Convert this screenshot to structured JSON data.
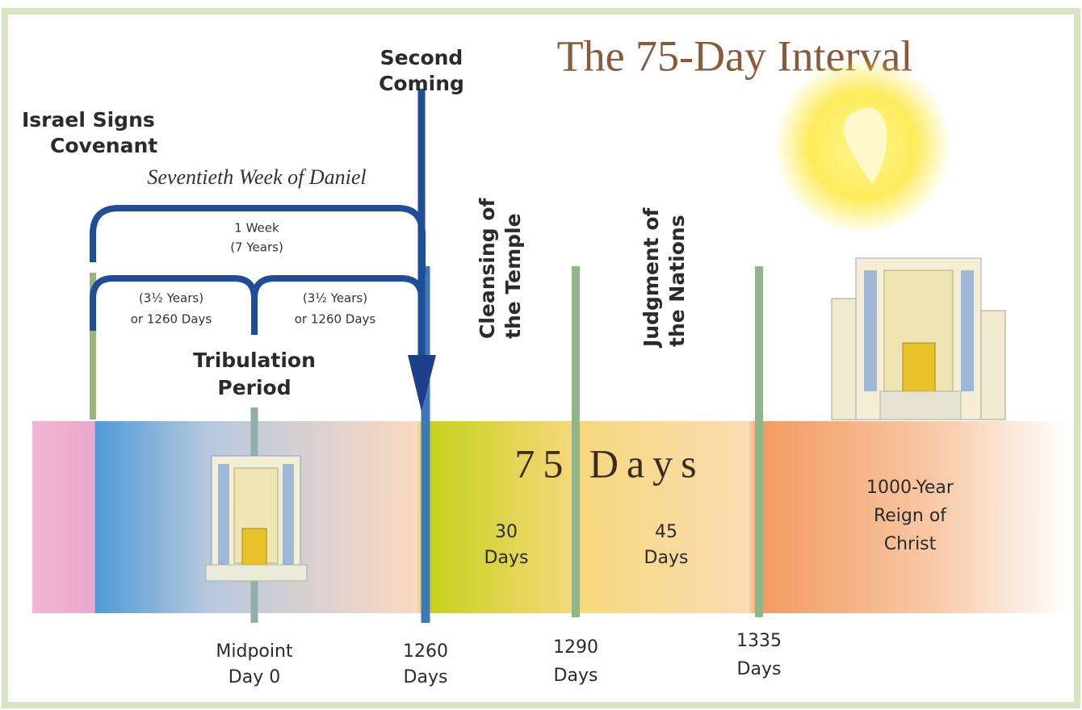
{
  "title": "The 75-Day Interval",
  "labels": {
    "second_coming": [
      "Second",
      "Coming"
    ],
    "covenant": [
      "Israel Signs",
      "Covenant"
    ],
    "seventieth_week": "Seventieth Week of Daniel",
    "one_week": [
      "1 Week",
      "(7 Years)"
    ],
    "first_half": [
      "(3½ Years)",
      "or 1260 Days"
    ],
    "second_half": [
      "(3½ Years)",
      "or 1260 Days"
    ],
    "tribulation": [
      "Tribulation",
      "Period"
    ],
    "cleansing": [
      "Cleansing of",
      "the Temple"
    ],
    "judgment": [
      "Judgment of",
      "the Nations"
    ],
    "interval": "75 Days",
    "first_span": [
      "30",
      "Days"
    ],
    "second_span": [
      "45",
      "Days"
    ],
    "reign": [
      "1000-Year",
      "Reign of",
      "Christ"
    ]
  },
  "markers": [
    {
      "label": [
        "Midpoint",
        "Day 0"
      ]
    },
    {
      "label": [
        "1260",
        "Days"
      ]
    },
    {
      "label": [
        "1290",
        "Days"
      ]
    },
    {
      "label": [
        "1335",
        "Days"
      ]
    }
  ]
}
